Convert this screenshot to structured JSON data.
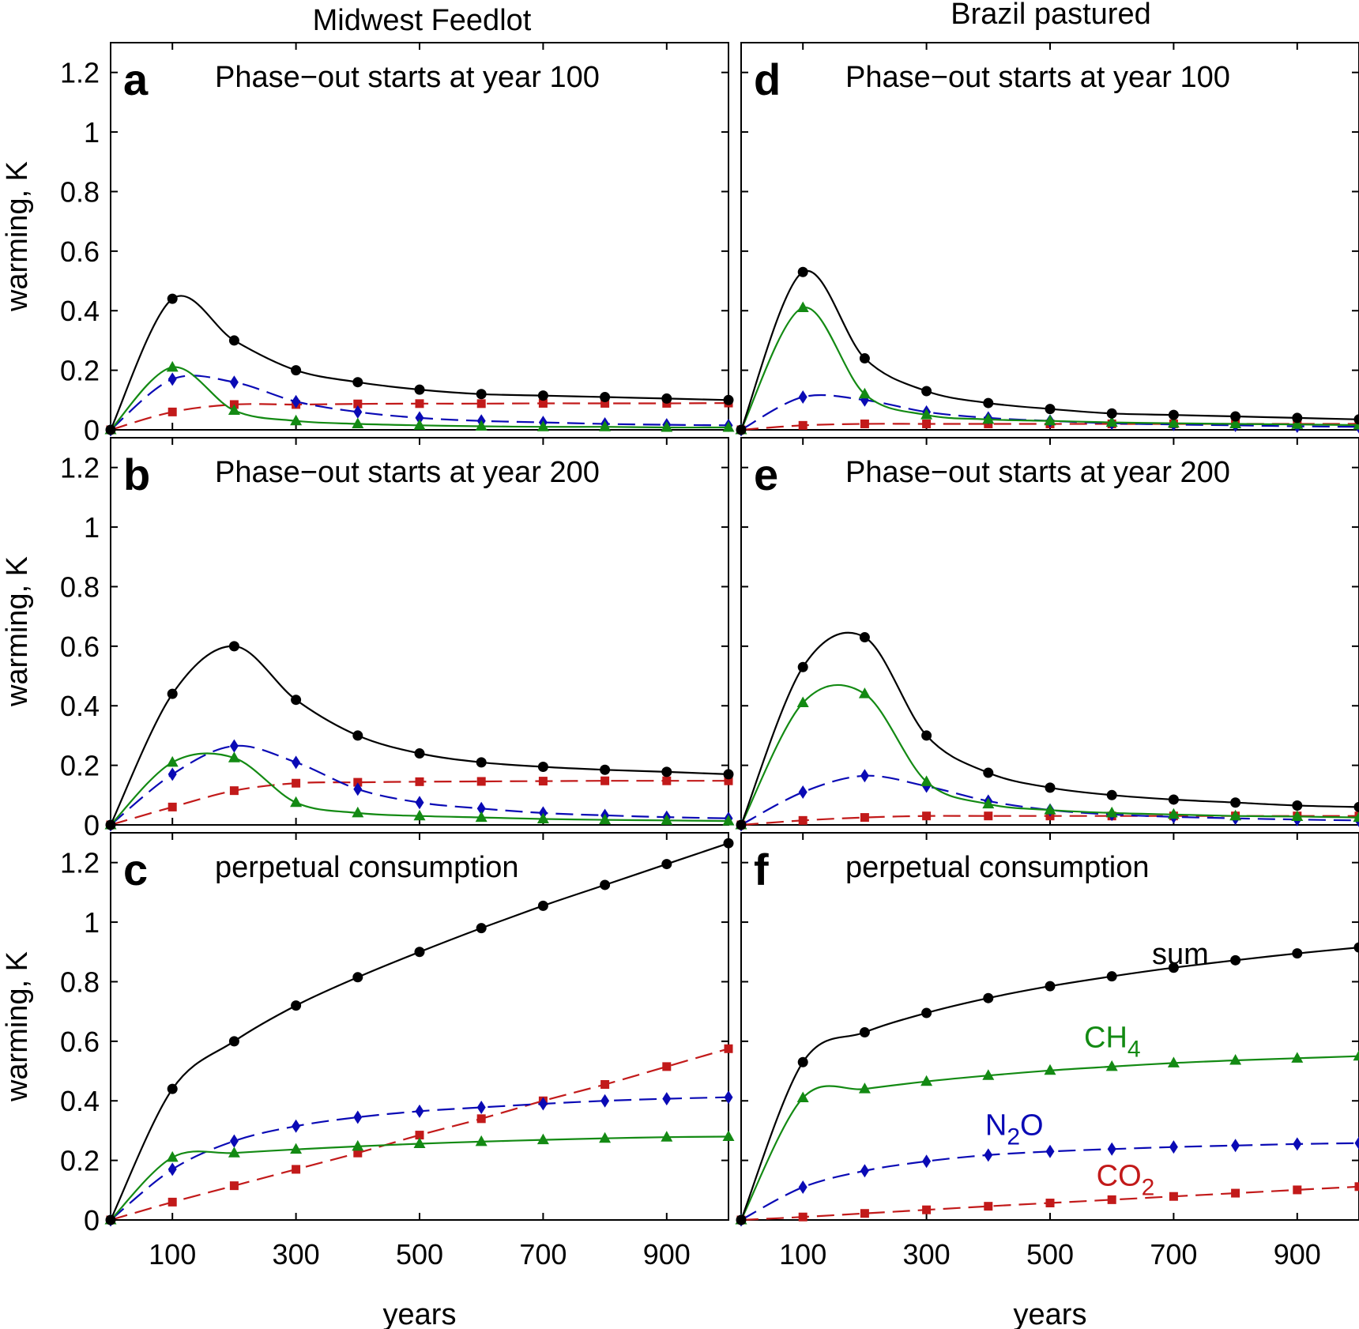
{
  "figure": {
    "col_titles": [
      "Midwest Feedlot",
      "Brazil pastured"
    ],
    "ylabel": "warming, K",
    "xlabel": "years",
    "colors": {
      "sum": "#000000",
      "CH4": "#138a13",
      "N2O": "#0a0ab5",
      "CO2": "#c21a1a"
    }
  },
  "chart_data": [
    {
      "id": "a",
      "type": "line",
      "letter": "a",
      "title": "Phase−out starts at year 100",
      "xlim": [
        0,
        1000
      ],
      "ylim": [
        0,
        1.3
      ],
      "yticks": [
        0,
        0.2,
        0.4,
        0.6,
        0.8,
        1,
        1.2
      ],
      "ytick_labels": [
        "0",
        "0.2",
        "0.4",
        "0.6",
        "0.8",
        "1",
        "1.2"
      ],
      "xticks": [
        100,
        300,
        500,
        700,
        900
      ],
      "xtick_labels": [],
      "show_xlabel": false,
      "grid": false,
      "x": [
        0,
        100,
        200,
        300,
        400,
        500,
        600,
        700,
        800,
        900,
        1000
      ],
      "series": [
        {
          "name": "sum",
          "values": [
            0,
            0.44,
            0.3,
            0.2,
            0.16,
            0.135,
            0.12,
            0.115,
            0.11,
            0.105,
            0.1
          ]
        },
        {
          "name": "CH4",
          "values": [
            0,
            0.21,
            0.065,
            0.03,
            0.02,
            0.015,
            0.012,
            0.01,
            0.01,
            0.008,
            0.008
          ]
        },
        {
          "name": "N2O",
          "values": [
            0,
            0.17,
            0.16,
            0.095,
            0.06,
            0.04,
            0.03,
            0.025,
            0.02,
            0.017,
            0.015
          ]
        },
        {
          "name": "CO2",
          "values": [
            0,
            0.06,
            0.085,
            0.085,
            0.087,
            0.088,
            0.088,
            0.089,
            0.089,
            0.089,
            0.09
          ]
        }
      ]
    },
    {
      "id": "d",
      "type": "line",
      "letter": "d",
      "title": "Phase−out starts at year 100",
      "xlim": [
        0,
        1000
      ],
      "ylim": [
        0,
        1.3
      ],
      "yticks": [
        0,
        0.2,
        0.4,
        0.6,
        0.8,
        1,
        1.2
      ],
      "ytick_labels": [],
      "xticks": [
        100,
        300,
        500,
        700,
        900
      ],
      "xtick_labels": [],
      "show_xlabel": false,
      "grid": false,
      "x": [
        0,
        100,
        200,
        300,
        400,
        500,
        600,
        700,
        800,
        900,
        1000
      ],
      "series": [
        {
          "name": "sum",
          "values": [
            0,
            0.53,
            0.24,
            0.13,
            0.09,
            0.07,
            0.055,
            0.05,
            0.045,
            0.04,
            0.035
          ]
        },
        {
          "name": "CH4",
          "values": [
            0,
            0.41,
            0.12,
            0.05,
            0.035,
            0.03,
            0.025,
            0.022,
            0.02,
            0.018,
            0.016
          ]
        },
        {
          "name": "N2O",
          "values": [
            0,
            0.11,
            0.1,
            0.06,
            0.04,
            0.03,
            0.022,
            0.018,
            0.015,
            0.012,
            0.01
          ]
        },
        {
          "name": "CO2",
          "values": [
            0,
            0.015,
            0.02,
            0.02,
            0.02,
            0.02,
            0.02,
            0.02,
            0.02,
            0.02,
            0.02
          ]
        }
      ]
    },
    {
      "id": "b",
      "type": "line",
      "letter": "b",
      "title": "Phase−out starts at year 200",
      "xlim": [
        0,
        1000
      ],
      "ylim": [
        0,
        1.3
      ],
      "yticks": [
        0,
        0.2,
        0.4,
        0.6,
        0.8,
        1,
        1.2
      ],
      "ytick_labels": [
        "0",
        "0.2",
        "0.4",
        "0.6",
        "0.8",
        "1",
        "1.2"
      ],
      "xticks": [
        100,
        300,
        500,
        700,
        900
      ],
      "xtick_labels": [],
      "show_xlabel": false,
      "grid": false,
      "x": [
        0,
        100,
        200,
        300,
        400,
        500,
        600,
        700,
        800,
        900,
        1000
      ],
      "series": [
        {
          "name": "sum",
          "values": [
            0,
            0.44,
            0.6,
            0.42,
            0.3,
            0.24,
            0.21,
            0.195,
            0.185,
            0.178,
            0.17
          ]
        },
        {
          "name": "CH4",
          "values": [
            0,
            0.21,
            0.225,
            0.075,
            0.04,
            0.03,
            0.025,
            0.02,
            0.017,
            0.015,
            0.013
          ]
        },
        {
          "name": "N2O",
          "values": [
            0,
            0.17,
            0.265,
            0.21,
            0.12,
            0.075,
            0.055,
            0.04,
            0.032,
            0.026,
            0.022
          ]
        },
        {
          "name": "CO2",
          "values": [
            0,
            0.06,
            0.115,
            0.14,
            0.143,
            0.145,
            0.146,
            0.147,
            0.148,
            0.148,
            0.148
          ]
        }
      ]
    },
    {
      "id": "e",
      "type": "line",
      "letter": "e",
      "title": "Phase−out starts at year 200",
      "xlim": [
        0,
        1000
      ],
      "ylim": [
        0,
        1.3
      ],
      "yticks": [
        0,
        0.2,
        0.4,
        0.6,
        0.8,
        1,
        1.2
      ],
      "ytick_labels": [],
      "xticks": [
        100,
        300,
        500,
        700,
        900
      ],
      "xtick_labels": [],
      "show_xlabel": false,
      "grid": false,
      "x": [
        0,
        100,
        200,
        300,
        400,
        500,
        600,
        700,
        800,
        900,
        1000
      ],
      "series": [
        {
          "name": "sum",
          "values": [
            0,
            0.53,
            0.63,
            0.3,
            0.175,
            0.125,
            0.1,
            0.085,
            0.075,
            0.065,
            0.06
          ]
        },
        {
          "name": "CH4",
          "values": [
            0,
            0.41,
            0.44,
            0.145,
            0.07,
            0.05,
            0.04,
            0.035,
            0.03,
            0.028,
            0.025
          ]
        },
        {
          "name": "N2O",
          "values": [
            0,
            0.11,
            0.165,
            0.13,
            0.08,
            0.05,
            0.035,
            0.027,
            0.022,
            0.018,
            0.015
          ]
        },
        {
          "name": "CO2",
          "values": [
            0,
            0.015,
            0.025,
            0.03,
            0.03,
            0.03,
            0.03,
            0.03,
            0.03,
            0.03,
            0.03
          ]
        }
      ]
    },
    {
      "id": "c",
      "type": "line",
      "letter": "c",
      "title": "perpetual consumption",
      "xlim": [
        0,
        1000
      ],
      "ylim": [
        0,
        1.3
      ],
      "yticks": [
        0,
        0.2,
        0.4,
        0.6,
        0.8,
        1,
        1.2
      ],
      "ytick_labels": [
        "0",
        "0.2",
        "0.4",
        "0.6",
        "0.8",
        "1",
        "1.2"
      ],
      "xticks": [
        100,
        300,
        500,
        700,
        900
      ],
      "xtick_labels": [
        "100",
        "300",
        "500",
        "700",
        "900"
      ],
      "show_xlabel": true,
      "grid": false,
      "x": [
        0,
        100,
        200,
        300,
        400,
        500,
        600,
        700,
        800,
        900,
        1000
      ],
      "series": [
        {
          "name": "sum",
          "values": [
            0,
            0.44,
            0.6,
            0.72,
            0.815,
            0.9,
            0.98,
            1.055,
            1.125,
            1.195,
            1.265
          ]
        },
        {
          "name": "CH4",
          "values": [
            0,
            0.21,
            0.225,
            0.237,
            0.247,
            0.256,
            0.263,
            0.269,
            0.274,
            0.278,
            0.28
          ]
        },
        {
          "name": "N2O",
          "values": [
            0,
            0.17,
            0.265,
            0.315,
            0.345,
            0.365,
            0.378,
            0.39,
            0.4,
            0.407,
            0.412
          ]
        },
        {
          "name": "CO2",
          "values": [
            0,
            0.06,
            0.115,
            0.17,
            0.225,
            0.285,
            0.34,
            0.4,
            0.455,
            0.515,
            0.575
          ]
        }
      ]
    },
    {
      "id": "f",
      "type": "line",
      "letter": "f",
      "title": "perpetual consumption",
      "xlim": [
        0,
        1000
      ],
      "ylim": [
        0,
        1.3
      ],
      "yticks": [
        0,
        0.2,
        0.4,
        0.6,
        0.8,
        1,
        1.2
      ],
      "ytick_labels": [],
      "xticks": [
        100,
        300,
        500,
        700,
        900
      ],
      "xtick_labels": [
        "100",
        "300",
        "500",
        "700",
        "900"
      ],
      "show_xlabel": true,
      "grid": false,
      "x": [
        0,
        100,
        200,
        300,
        400,
        500,
        600,
        700,
        800,
        900,
        1000
      ],
      "series": [
        {
          "name": "sum",
          "label": "sum",
          "values": [
            0,
            0.53,
            0.63,
            0.695,
            0.745,
            0.785,
            0.818,
            0.847,
            0.872,
            0.895,
            0.915
          ]
        },
        {
          "name": "CH4",
          "label": "CH4",
          "values": [
            0,
            0.41,
            0.44,
            0.465,
            0.485,
            0.502,
            0.515,
            0.527,
            0.536,
            0.543,
            0.55
          ]
        },
        {
          "name": "N2O",
          "label": "N2O",
          "values": [
            0,
            0.11,
            0.165,
            0.197,
            0.218,
            0.23,
            0.238,
            0.245,
            0.25,
            0.255,
            0.258
          ]
        },
        {
          "name": "CO2",
          "label": "CO2",
          "values": [
            0,
            0.01,
            0.022,
            0.034,
            0.046,
            0.057,
            0.068,
            0.079,
            0.09,
            0.101,
            0.112
          ]
        }
      ]
    }
  ]
}
